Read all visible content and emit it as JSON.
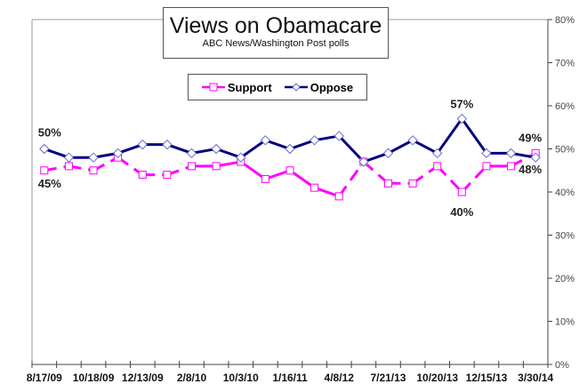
{
  "chart_data": {
    "type": "line",
    "title": "Views on Obamacare",
    "subtitle": "ABC News/Washington  Post polls",
    "x": [
      "8/17/09",
      "",
      "10/18/09",
      "",
      "12/13/09",
      "",
      "2/8/10",
      "",
      "10/3/10",
      "",
      "1/16/11",
      "",
      "4/8/12",
      "",
      "7/21/13",
      "",
      "10/20/13",
      "",
      "12/15/13",
      "",
      "3/30/14"
    ],
    "x_tick_labels": [
      "8/17/09",
      "10/18/09",
      "12/13/09",
      "2/8/10",
      "10/3/10",
      "1/16/11",
      "4/8/12",
      "7/21/13",
      "10/20/13",
      "12/15/13",
      "3/30/14"
    ],
    "y_tick_labels": [
      "0%",
      "10%",
      "20%",
      "30%",
      "40%",
      "50%",
      "60%",
      "70%",
      "80%"
    ],
    "ylim": [
      0,
      80
    ],
    "y_axis_side": "right",
    "grid": false,
    "legend": "top-center",
    "series": [
      {
        "name": "Support",
        "color": "#ff00ff",
        "marker": "square",
        "values": [
          45,
          46,
          45,
          48,
          44,
          44,
          46,
          46,
          47,
          43,
          45,
          41,
          39,
          47,
          42,
          42,
          46,
          40,
          46,
          46,
          49
        ]
      },
      {
        "name": "Oppose",
        "color": "#000080",
        "marker": "diamond",
        "values": [
          50,
          48,
          48,
          49,
          51,
          51,
          49,
          50,
          48,
          52,
          50,
          52,
          53,
          47,
          49,
          52,
          49,
          57,
          49,
          49,
          48
        ]
      }
    ],
    "annotations": [
      {
        "text": "50%",
        "series": "Oppose",
        "index": 0
      },
      {
        "text": "45%",
        "series": "Support",
        "index": 0
      },
      {
        "text": "57%",
        "series": "Oppose",
        "index": 17
      },
      {
        "text": "40%",
        "series": "Support",
        "index": 17
      },
      {
        "text": "49%",
        "series": "Support",
        "index": 20
      },
      {
        "text": "48%",
        "series": "Oppose",
        "index": 20
      }
    ]
  }
}
